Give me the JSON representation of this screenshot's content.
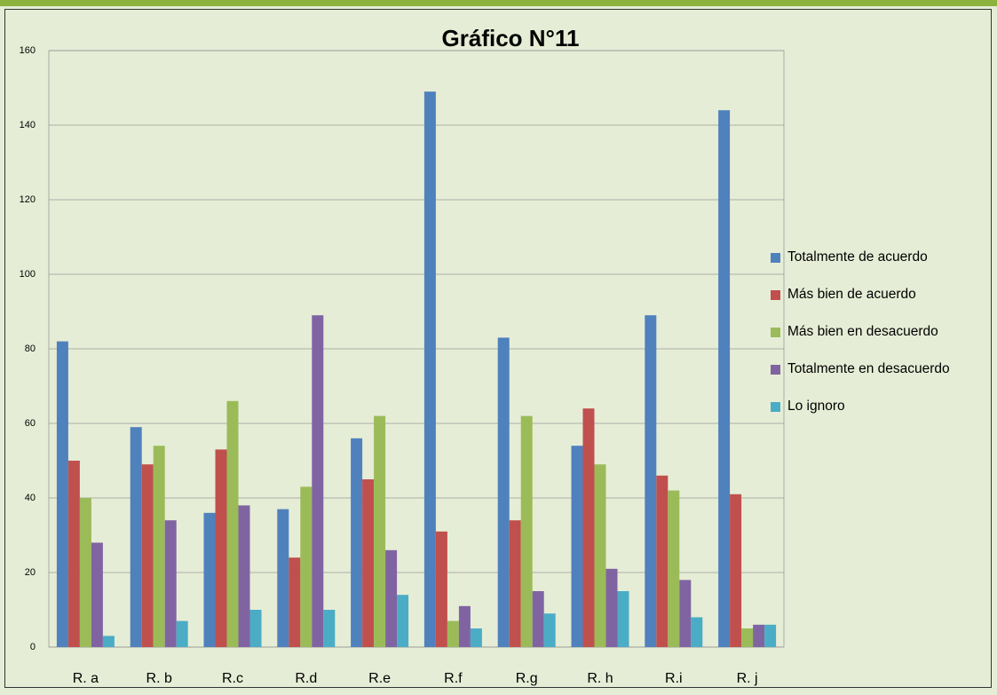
{
  "chart_data": {
    "type": "bar",
    "title": "Gráfico N°11",
    "categories": [
      "R. a",
      "R. b",
      "R.c",
      "R.d",
      "R.e",
      "R.f",
      "R.g",
      "R. h",
      "R.i",
      "R. j"
    ],
    "series": [
      {
        "name": "Totalmente de acuerdo",
        "color": "#4f81bd",
        "values": [
          82,
          59,
          36,
          37,
          56,
          149,
          83,
          54,
          89,
          144
        ]
      },
      {
        "name": "Más bien de acuerdo",
        "color": "#c0504d",
        "values": [
          50,
          49,
          53,
          24,
          45,
          31,
          34,
          64,
          46,
          41
        ]
      },
      {
        "name": "Más bien en desacuerdo",
        "color": "#9bbb59",
        "values": [
          40,
          54,
          66,
          43,
          62,
          7,
          62,
          49,
          42,
          5
        ]
      },
      {
        "name": "Totalmente en desacuerdo",
        "color": "#8064a2",
        "values": [
          28,
          34,
          38,
          89,
          26,
          11,
          15,
          21,
          18,
          6
        ]
      },
      {
        "name": "Lo ignoro",
        "color": "#4bacc6",
        "values": [
          3,
          7,
          10,
          10,
          14,
          5,
          9,
          15,
          8,
          6
        ]
      }
    ],
    "ylim": [
      0,
      160
    ],
    "yticks": [
      0,
      20,
      40,
      60,
      80,
      100,
      120,
      140,
      160
    ],
    "grid": true,
    "legend": "right"
  }
}
